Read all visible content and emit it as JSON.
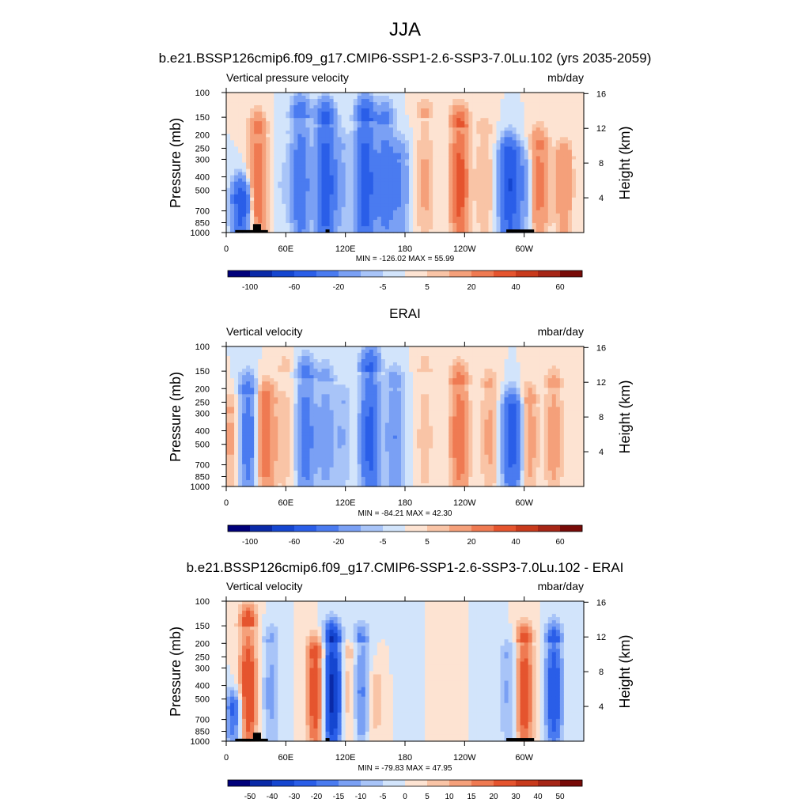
{
  "figure_title": "JJA",
  "chart_data": [
    {
      "type": "heatmap",
      "title": "b.e21.BSSP126cmip6.f09_g17.CMIP6-SSP1-2.6-SSP3-7.0Lu.102 (yrs 2035-2059)",
      "left_label": "Vertical pressure velocity",
      "right_label": "mb/day",
      "ylabel": "Pressure (mb)",
      "ylabel_right": "Height (km)",
      "x_ticks": [
        "0",
        "60E",
        "120E",
        "180",
        "120W",
        "60W"
      ],
      "y_ticks": [
        "100",
        "150",
        "200",
        "250",
        "300",
        "400",
        "500",
        "700",
        "850",
        "1000"
      ],
      "y_right_ticks": [
        "16",
        "12",
        "8",
        "4"
      ],
      "stats": "MIN = -126.02  MAX =  55.99",
      "colorbar_labels": [
        "-100",
        "-60",
        "-20",
        "-5",
        "5",
        "20",
        "40",
        "60"
      ],
      "features": [
        {
          "lon": 15,
          "top": 600,
          "val": -60
        },
        {
          "lon": 32,
          "top": 200,
          "val": 30
        },
        {
          "lon": 55,
          "top": 200,
          "val": -5
        },
        {
          "lon": 75,
          "top": 150,
          "val": -35
        },
        {
          "lon": 100,
          "top": 170,
          "val": -60
        },
        {
          "lon": 117,
          "top": 250,
          "val": -10
        },
        {
          "lon": 140,
          "top": 160,
          "val": -60
        },
        {
          "lon": 160,
          "top": 170,
          "val": -30
        },
        {
          "lon": 175,
          "top": 300,
          "val": -20
        },
        {
          "lon": 200,
          "top": 150,
          "val": 12
        },
        {
          "lon": 235,
          "top": 180,
          "val": 38
        },
        {
          "lon": 260,
          "top": 200,
          "val": 10
        },
        {
          "lon": 285,
          "top": 300,
          "val": -60
        },
        {
          "lon": 300,
          "top": 350,
          "val": -15
        },
        {
          "lon": 315,
          "top": 250,
          "val": 25
        },
        {
          "lon": 340,
          "top": 300,
          "val": 18
        }
      ],
      "topography": [
        {
          "lon0": 9,
          "lon1": 42,
          "base": 960
        },
        {
          "lon0": 27,
          "lon1": 35,
          "base": 870
        },
        {
          "lon0": 100,
          "lon1": 104,
          "base": 950
        },
        {
          "lon0": 282,
          "lon1": 310,
          "base": 950
        }
      ]
    },
    {
      "type": "heatmap",
      "title": "ERAI",
      "left_label": "Vertical velocity",
      "right_label": "mbar/day",
      "ylabel": "Pressure (mb)",
      "ylabel_right": "Height (km)",
      "x_ticks": [
        "0",
        "60E",
        "120E",
        "180",
        "120W",
        "60W"
      ],
      "y_ticks": [
        "100",
        "150",
        "200",
        "250",
        "300",
        "400",
        "500",
        "700",
        "850",
        "1000"
      ],
      "y_right_ticks": [
        "16",
        "12",
        "8",
        "4"
      ],
      "stats": "MIN = -84.21  MAX =  42.30",
      "colorbar_labels": [
        "-100",
        "-60",
        "-20",
        "-5",
        "5",
        "20",
        "40",
        "60"
      ],
      "features": [
        {
          "lon": 5,
          "top": 300,
          "val": 12
        },
        {
          "lon": 22,
          "top": 220,
          "val": -30
        },
        {
          "lon": 40,
          "top": 250,
          "val": 30
        },
        {
          "lon": 60,
          "top": 150,
          "val": 8
        },
        {
          "lon": 80,
          "top": 170,
          "val": -30
        },
        {
          "lon": 100,
          "top": 180,
          "val": -15
        },
        {
          "lon": 117,
          "top": 250,
          "val": -10
        },
        {
          "lon": 145,
          "top": 150,
          "val": -50
        },
        {
          "lon": 170,
          "top": 200,
          "val": -20
        },
        {
          "lon": 200,
          "top": 150,
          "val": 8
        },
        {
          "lon": 235,
          "top": 190,
          "val": 30
        },
        {
          "lon": 265,
          "top": 200,
          "val": 12
        },
        {
          "lon": 288,
          "top": 300,
          "val": -50
        },
        {
          "lon": 305,
          "top": 250,
          "val": 15
        },
        {
          "lon": 330,
          "top": 200,
          "val": 15
        }
      ],
      "topography": []
    },
    {
      "type": "heatmap",
      "title": "b.e21.BSSP126cmip6.f09_g17.CMIP6-SSP1-2.6-SSP3-7.0Lu.102 - ERAI",
      "left_label": "Vertical velocity",
      "right_label": "mbar/day",
      "ylabel": "Pressure (mb)",
      "ylabel_right": "Height (km)",
      "x_ticks": [
        "0",
        "60E",
        "120E",
        "180",
        "120W",
        "60W"
      ],
      "y_ticks": [
        "100",
        "150",
        "200",
        "250",
        "300",
        "400",
        "500",
        "700",
        "850",
        "1000"
      ],
      "y_right_ticks": [
        "16",
        "12",
        "8",
        "4"
      ],
      "stats": "MIN = -79.83  MAX =  47.95",
      "colorbar_labels": [
        "-50",
        "-40",
        "-30",
        "-20",
        "-15",
        "-10",
        "-5",
        "0",
        "5",
        "10",
        "15",
        "20",
        "30",
        "40",
        "50"
      ],
      "features": [
        {
          "lon": 8,
          "top": 600,
          "val": -25
        },
        {
          "lon": 22,
          "top": 150,
          "val": 30
        },
        {
          "lon": 45,
          "top": 200,
          "val": -12
        },
        {
          "lon": 90,
          "top": 250,
          "val": 28
        },
        {
          "lon": 107,
          "top": 200,
          "val": -45
        },
        {
          "lon": 125,
          "top": 250,
          "val": 12
        },
        {
          "lon": 135,
          "top": 200,
          "val": -20
        },
        {
          "lon": 150,
          "top": 400,
          "val": 8
        },
        {
          "lon": 180,
          "top": 200,
          "val": -3
        },
        {
          "lon": 220,
          "top": 200,
          "val": 3
        },
        {
          "lon": 265,
          "top": 200,
          "val": -3
        },
        {
          "lon": 285,
          "top": 250,
          "val": -12
        },
        {
          "lon": 300,
          "top": 200,
          "val": 28
        },
        {
          "lon": 330,
          "top": 200,
          "val": -28
        }
      ],
      "topography": [
        {
          "lon0": 9,
          "lon1": 42,
          "base": 960
        },
        {
          "lon0": 27,
          "lon1": 35,
          "base": 870
        },
        {
          "lon0": 100,
          "lon1": 104,
          "base": 950
        },
        {
          "lon0": 282,
          "lon1": 310,
          "base": 950
        }
      ]
    }
  ],
  "colors": {
    "background": "#ffffff",
    "topography": "#000000",
    "palette": [
      "#00007a",
      "#0a2aa8",
      "#1546d0",
      "#2a5ee8",
      "#4a7bf0",
      "#7aa0f4",
      "#a8c4f8",
      "#d2e4fb",
      "#fde3d2",
      "#f9c4a6",
      "#f5a07a",
      "#ef7a52",
      "#e5542e",
      "#c83a1c",
      "#a62616",
      "#780b08"
    ]
  }
}
